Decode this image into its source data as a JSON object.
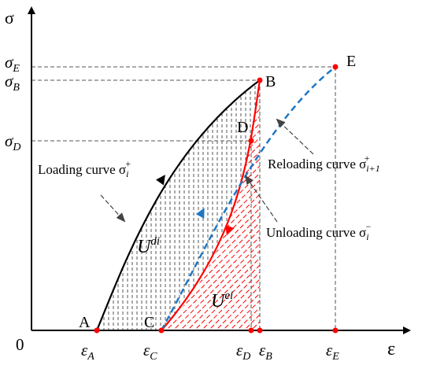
{
  "axes": {
    "y_label": "σ",
    "x_label": "ε",
    "origin": "0"
  },
  "points": {
    "A": "A",
    "B": "B",
    "C": "C",
    "D": "D",
    "E": "E"
  },
  "y_ticks": {
    "sigma_E": "σ",
    "sigma_E_sub": "E",
    "sigma_B": "σ",
    "sigma_B_sub": "B",
    "sigma_D": "σ",
    "sigma_D_sub": "D"
  },
  "x_ticks": {
    "eps_A": "ε",
    "eps_A_sub": "A",
    "eps_C": "ε",
    "eps_C_sub": "C",
    "eps_D": "ε",
    "eps_D_sub": "D",
    "eps_B": "ε",
    "eps_B_sub": "B",
    "eps_E": "ε",
    "eps_E_sub": "E"
  },
  "annotations": {
    "loading": "Loading curve σ",
    "loading_sub": "i",
    "loading_sup": "+",
    "reloading": "Reloading curve σ",
    "reloading_sub": "i+1",
    "reloading_sup": "+",
    "unloading": "Unloading curve σ",
    "unloading_sub": "i",
    "unloading_sup": "−",
    "u_di": "U",
    "u_di_sup": "di",
    "u_ei": "U",
    "u_ei_sup": "ei"
  },
  "colors": {
    "loading": "#000000",
    "unloading": "#ff0000",
    "reloading": "#1f77c4",
    "hatch_dissipated": "#555555",
    "hatch_elastic": "#ff0000",
    "point": "#ff0000",
    "guide": "#555555"
  }
}
